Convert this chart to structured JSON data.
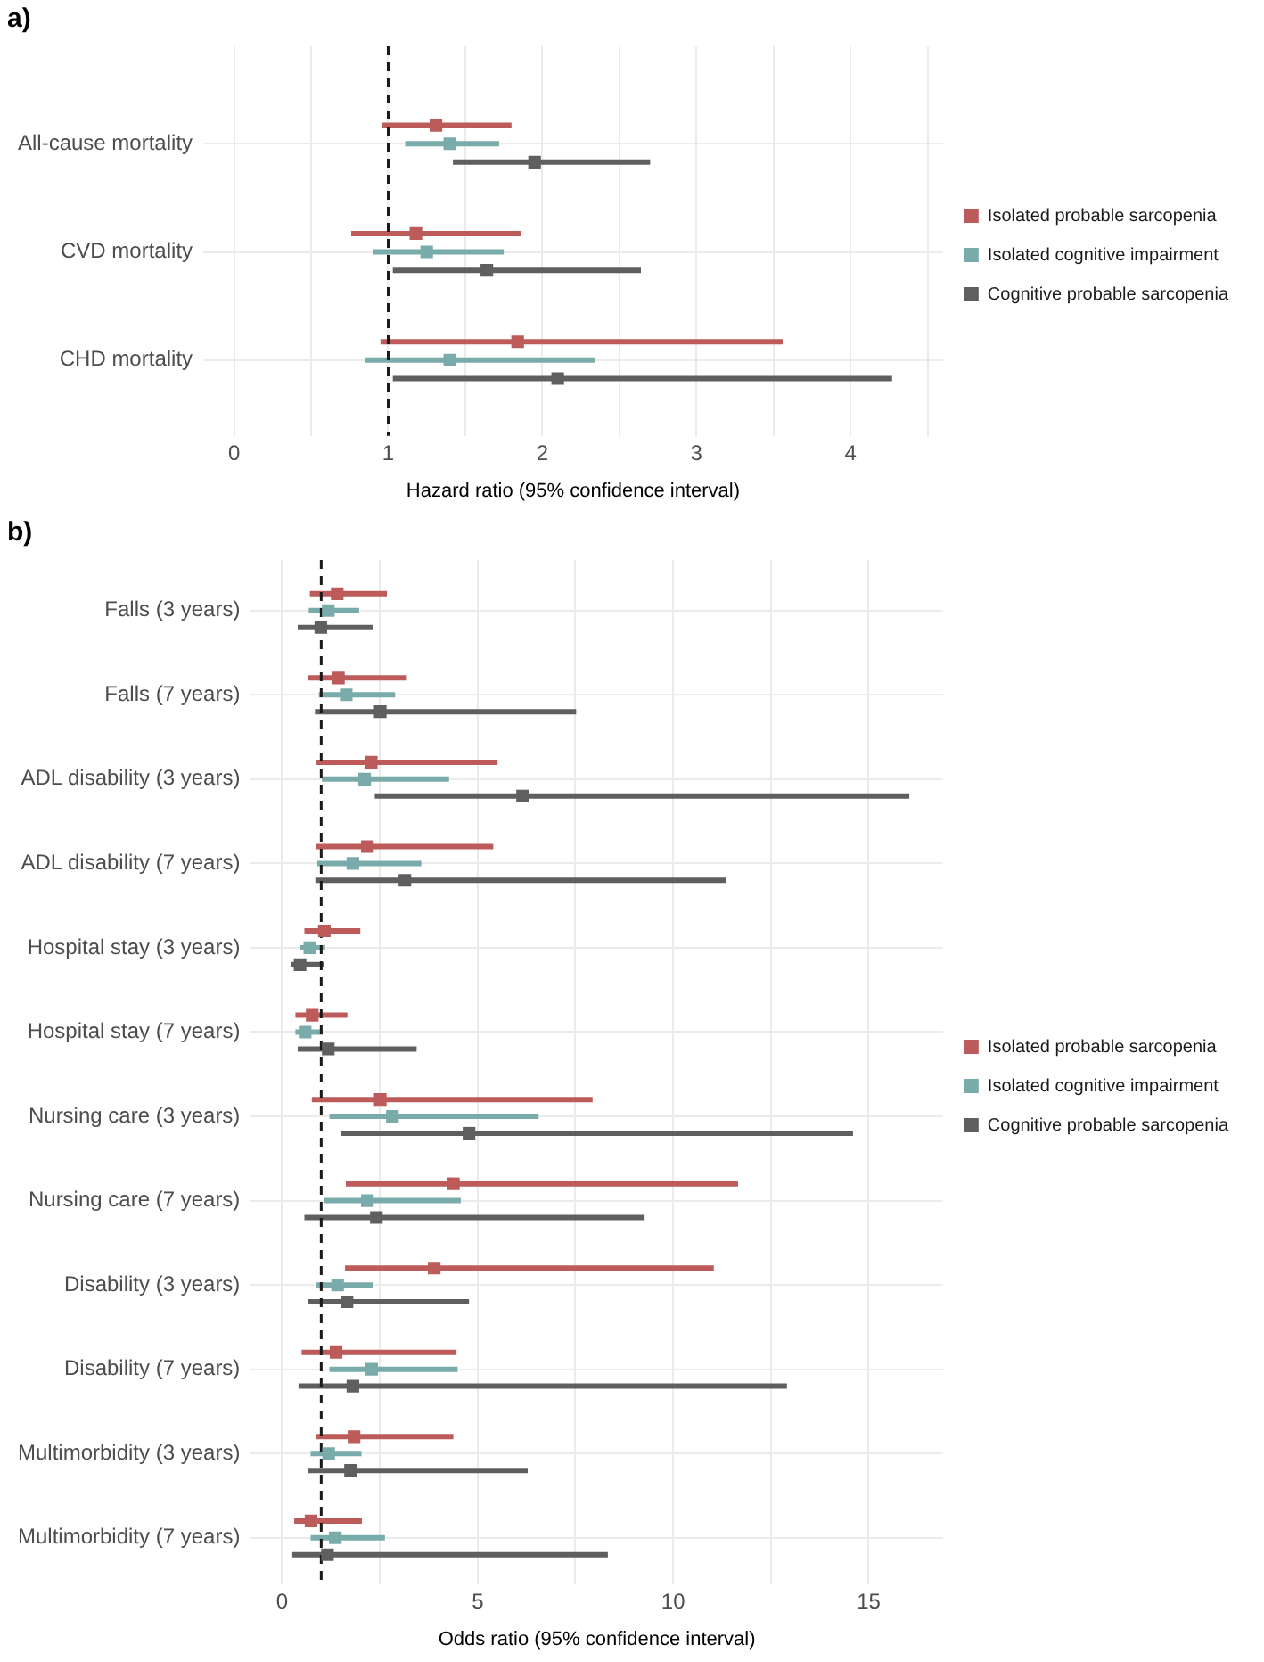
{
  "chart_data": [
    {
      "type": "scatter",
      "title": "a)",
      "orientation": "horizontal",
      "marker": "square",
      "grid": true,
      "legend": "right",
      "xlabel": "Hazard ratio (95% confidence interval)",
      "categories": [
        "All-cause mortality",
        "CVD mortality",
        "CHD mortality"
      ],
      "xlim": [
        -0.2,
        4.6
      ],
      "xticks": [
        0,
        {
          "value": 0.5,
          "label": null
        },
        1,
        {
          "value": 1.5,
          "label": null
        },
        2,
        {
          "value": 2.5,
          "label": null
        },
        3,
        {
          "value": 3.5,
          "label": null
        },
        4,
        {
          "value": 4.5,
          "label": null
        }
      ],
      "ref_lines": [
        {
          "axis": "x",
          "value": 1,
          "line_style": "dashed",
          "color": "#1a1a1a"
        }
      ],
      "series": [
        {
          "name": "Isolated probable sarcopenia",
          "color": "#bd5b5b",
          "values": [
            1.31,
            1.18,
            1.84
          ],
          "errors": [
            [
              0.96,
              1.8
            ],
            [
              0.76,
              1.86
            ],
            [
              0.95,
              3.56
            ]
          ]
        },
        {
          "name": "Isolated cognitive impairment",
          "color": "#7aabab",
          "values": [
            1.4,
            1.25,
            1.4
          ],
          "errors": [
            [
              1.11,
              1.72
            ],
            [
              0.9,
              1.75
            ],
            [
              0.85,
              2.34
            ]
          ]
        },
        {
          "name": "Cognitive probable sarcopenia",
          "color": "#5f5f5f",
          "values": [
            1.95,
            1.64,
            2.1
          ],
          "errors": [
            [
              1.42,
              2.7
            ],
            [
              1.03,
              2.64
            ],
            [
              1.03,
              4.27
            ]
          ]
        }
      ]
    },
    {
      "type": "scatter",
      "title": "b)",
      "orientation": "horizontal",
      "marker": "square",
      "grid": true,
      "legend": "right",
      "xlabel": "Odds ratio (95% confidence interval)",
      "categories": [
        "Falls (3 years)",
        "Falls (7 years)",
        "ADL disability (3 years)",
        "ADL disability (7 years)",
        "Hospital stay (3 years)",
        "Hospital stay (7 years)",
        "Nursing care (3 years)",
        "Nursing care (7 years)",
        "Disability (3 years)",
        "Disability (7 years)",
        "Multimorbidity (3 years)",
        "Multimorbidity (7 years)"
      ],
      "xlim": [
        -0.8,
        16.9
      ],
      "xticks": [
        0,
        {
          "value": 2.5,
          "label": null
        },
        5,
        {
          "value": 7.5,
          "label": null
        },
        10,
        {
          "value": 12.5,
          "label": null
        },
        15
      ],
      "ref_lines": [
        {
          "axis": "x",
          "value": 1,
          "line_style": "dashed",
          "color": "#1a1a1a"
        }
      ],
      "series": [
        {
          "name": "Isolated probable sarcopenia",
          "color": "#bd5b5b",
          "values": [
            1.41,
            1.44,
            2.28,
            2.18,
            1.08,
            0.77,
            2.51,
            4.38,
            3.89,
            1.38,
            1.84,
            0.74
          ],
          "errors": [
            [
              0.71,
              2.68
            ],
            [
              0.65,
              3.19
            ],
            [
              0.88,
              5.51
            ],
            [
              0.87,
              5.4
            ],
            [
              0.57,
              2.0
            ],
            [
              0.34,
              1.67
            ],
            [
              0.76,
              7.94
            ],
            [
              1.63,
              11.66
            ],
            [
              1.61,
              11.04
            ],
            [
              0.5,
              4.46
            ],
            [
              0.87,
              4.38
            ],
            [
              0.31,
              2.04
            ]
          ]
        },
        {
          "name": "Isolated cognitive impairment",
          "color": "#7aabab",
          "values": [
            1.18,
            1.64,
            2.11,
            1.81,
            0.71,
            0.59,
            2.82,
            2.18,
            1.42,
            2.29,
            1.19,
            1.36
          ],
          "errors": [
            [
              0.68,
              1.97
            ],
            [
              0.94,
              2.89
            ],
            [
              1.02,
              4.27
            ],
            [
              0.9,
              3.56
            ],
            [
              0.46,
              1.1
            ],
            [
              0.34,
              1.04
            ],
            [
              1.21,
              6.56
            ],
            [
              1.07,
              4.57
            ],
            [
              0.88,
              2.32
            ],
            [
              1.21,
              4.49
            ],
            [
              0.73,
              2.03
            ],
            [
              0.73,
              2.63
            ]
          ]
        },
        {
          "name": "Cognitive probable sarcopenia",
          "color": "#5f5f5f",
          "values": [
            0.99,
            2.51,
            6.15,
            3.14,
            0.46,
            1.18,
            4.78,
            2.41,
            1.66,
            1.81,
            1.75,
            1.16
          ],
          "errors": [
            [
              0.4,
              2.32
            ],
            [
              0.84,
              7.52
            ],
            [
              2.37,
              16.04
            ],
            [
              0.85,
              11.36
            ],
            [
              0.23,
              1.08
            ],
            [
              0.4,
              3.44
            ],
            [
              1.5,
              14.6
            ],
            [
              0.57,
              9.27
            ],
            [
              0.67,
              4.78
            ],
            [
              0.42,
              12.91
            ],
            [
              0.65,
              6.28
            ],
            [
              0.26,
              8.33
            ]
          ]
        }
      ]
    }
  ]
}
